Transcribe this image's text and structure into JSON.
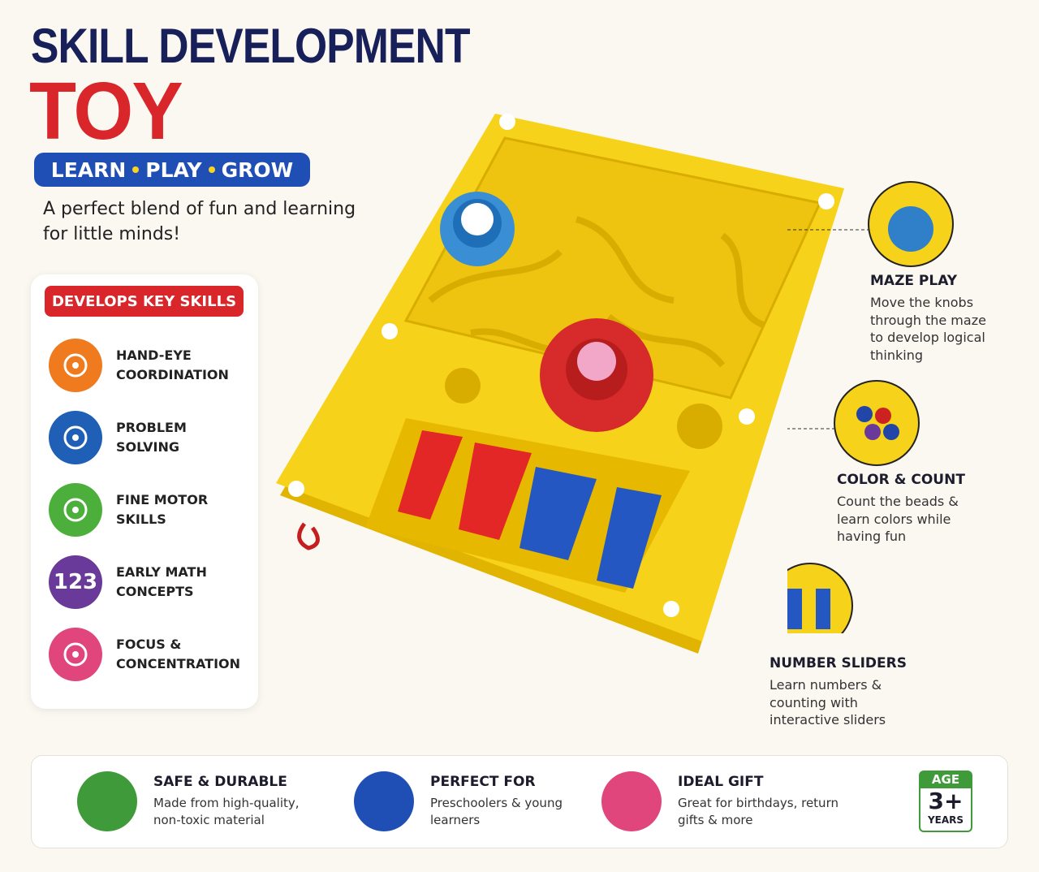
{
  "header": {
    "title_line1": "SKILL DEVELOPMENT",
    "title_line2": "TOY",
    "tagline": [
      "LEARN",
      "PLAY",
      "GROW"
    ],
    "description": "A perfect blend of fun and learning for little minds!"
  },
  "skills": {
    "heading": "DEVELOPS KEY SKILLS",
    "items": [
      {
        "label": "HAND-EYE COORDINATION"
      },
      {
        "label": "PROBLEM SOLVING"
      },
      {
        "label": "FINE MOTOR SKILLS"
      },
      {
        "label": "EARLY MATH CONCEPTS",
        "icon_text": "123"
      },
      {
        "label": "FOCUS & CONCENTRATION"
      }
    ]
  },
  "callouts": [
    {
      "title": "MAZE PLAY",
      "text": "Move the knobs through the maze to develop logical thinking"
    },
    {
      "title": "COLOR & COUNT",
      "text": "Count the beads & learn colors while having fun"
    },
    {
      "title": "NUMBER SLIDERS",
      "text": "Learn numbers & counting with interactive sliders"
    }
  ],
  "features": [
    {
      "title": "SAFE & DURABLE",
      "text": "Made from high-quality, non-toxic material"
    },
    {
      "title": "PERFECT FOR",
      "text": "Preschoolers & young learners"
    },
    {
      "title": "IDEAL GIFT",
      "text": "Great for birthdays, return gifts & more"
    }
  ],
  "age_badge": {
    "label": "AGE",
    "value": "3+",
    "unit": "YEARS"
  }
}
